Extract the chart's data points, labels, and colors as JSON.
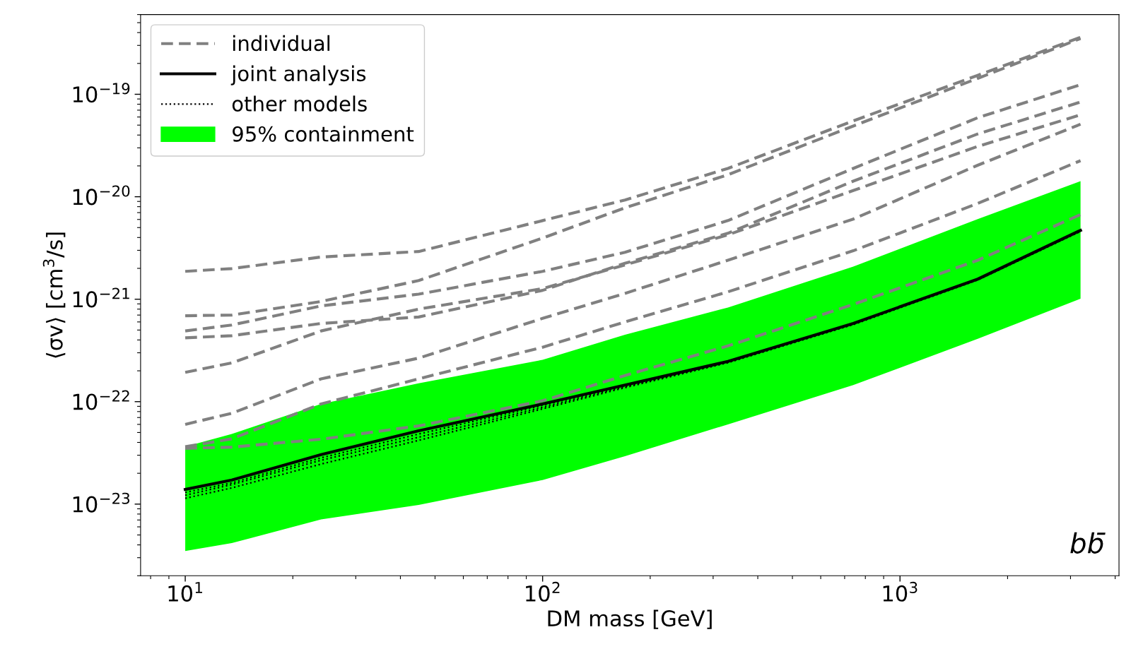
{
  "chart_data": {
    "type": "line",
    "log": "xy",
    "grid": false,
    "legend": "top left",
    "marker": "none",
    "xlabel": "DM mass [GeV]",
    "ylabel": "⟨σv⟩ [cm$^{3}$/s]",
    "xlim": [
      7.5,
      4100
    ],
    "ylim": [
      2e-24,
      6e-19
    ],
    "xticks": [
      {
        "value": 10,
        "label": "10$^{1}$"
      },
      {
        "value": 100,
        "label": "10$^{2}$"
      },
      {
        "value": 1000,
        "label": "10$^{3}$"
      }
    ],
    "yticks": [
      {
        "value": 1e-23,
        "label": "10$^{−23}$"
      },
      {
        "value": 1e-22,
        "label": "10$^{−22}$"
      },
      {
        "value": 1e-21,
        "label": "10$^{−21}$"
      },
      {
        "value": 1e-20,
        "label": "10$^{−20}$"
      },
      {
        "value": 1e-19,
        "label": "10$^{−19}$"
      }
    ],
    "annotations": [
      "bb̄"
    ],
    "x": [
      10,
      13.5,
      24,
      45,
      100,
      170,
      330,
      740,
      1650,
      3200
    ],
    "series": [
      {
        "name": "individual",
        "type": "line",
        "line_style": "dashed",
        "color": "#808080",
        "values": [
          1.87e-21,
          1.99e-21,
          2.58e-21,
          2.92e-21,
          5.85e-21,
          9.3e-21,
          1.89e-20,
          5.5e-20,
          1.53e-19,
          3.6e-19
        ]
      },
      {
        "type": "line",
        "line_style": "dashed",
        "color": "#808080",
        "values": [
          6.9e-22,
          7e-22,
          9.5e-22,
          1.52e-21,
          3.95e-21,
          7.8e-21,
          1.64e-20,
          4.9e-20,
          1.43e-19,
          3.5e-19
        ]
      },
      {
        "type": "line",
        "line_style": "dashed",
        "color": "#808080",
        "values": [
          4.9e-22,
          5.6e-22,
          8.6e-22,
          1.12e-21,
          1.87e-21,
          2.87e-21,
          5.85e-21,
          1.89e-20,
          5.9e-20,
          1.24e-19
        ]
      },
      {
        "type": "line",
        "line_style": "dashed",
        "color": "#808080",
        "values": [
          4.2e-22,
          4.4e-22,
          5.8e-22,
          6.7e-22,
          1.22e-21,
          2.24e-21,
          4.4e-21,
          1.42e-20,
          4.1e-20,
          8.4e-20
        ]
      },
      {
        "type": "line",
        "line_style": "dashed",
        "color": "#808080",
        "values": [
          1.93e-22,
          2.39e-22,
          4.9e-22,
          8e-22,
          1.27e-21,
          2.16e-21,
          4.25e-21,
          1.15e-20,
          3.1e-20,
          6.3e-20
        ]
      },
      {
        "type": "line",
        "line_style": "dashed",
        "color": "#808080",
        "values": [
          6e-23,
          7.7e-23,
          1.67e-22,
          2.66e-22,
          6.5e-22,
          1.14e-21,
          2.4e-21,
          6.05e-21,
          2.03e-20,
          5.1e-20
        ]
      },
      {
        "type": "line",
        "line_style": "dashed",
        "color": "#808080",
        "values": [
          3.63e-23,
          4.34e-23,
          9.5e-23,
          1.67e-22,
          3.4e-22,
          6e-22,
          1.18e-21,
          2.97e-21,
          8.6e-21,
          2.25e-20
        ]
      },
      {
        "type": "line",
        "line_style": "dashed",
        "color": "#808080",
        "values": [
          3.5e-23,
          3.6e-23,
          4.3e-23,
          5.8e-23,
          1.02e-22,
          1.8e-22,
          3.5e-22,
          8.9e-22,
          2.4e-21,
          6.7e-21
        ]
      },
      {
        "name": "joint analysis",
        "type": "line",
        "line_style": "solid",
        "color": "#000000",
        "values": [
          1.39e-23,
          1.72e-23,
          3.04e-23,
          5.2e-23,
          9.5e-23,
          1.45e-22,
          2.47e-22,
          5.8e-22,
          1.57e-21,
          4.7e-21
        ]
      },
      {
        "name": "other models",
        "type": "line",
        "line_style": "dotted",
        "color": "#000000",
        "values": [
          1.3e-23,
          1.61e-23,
          2.83e-23,
          4.83e-23,
          9.2e-23,
          1.43e-22,
          2.45e-22,
          5.75e-22,
          1.56e-21,
          4.65e-21
        ]
      },
      {
        "type": "line",
        "line_style": "dotted",
        "color": "#000000",
        "values": [
          1.22e-23,
          1.55e-23,
          2.68e-23,
          4.5e-23,
          8.8e-23,
          1.4e-22,
          2.42e-22,
          5.7e-22,
          1.55e-21,
          4.6e-21
        ]
      },
      {
        "type": "line",
        "line_style": "dotted",
        "color": "#000000",
        "values": [
          1.14e-23,
          1.44e-23,
          2.46e-23,
          4.19e-23,
          8.5e-23,
          1.37e-22,
          2.4e-22,
          5.65e-22,
          1.54e-21,
          4.6e-21
        ]
      },
      {
        "name": "95% containment",
        "type": "area",
        "color": "#00ff00",
        "values": [
          null,
          null,
          null,
          null,
          null,
          null,
          null,
          null,
          null,
          null
        ],
        "lower": [
          3.48e-24,
          4.16e-24,
          7.1e-24,
          9.8e-24,
          1.72e-23,
          2.94e-23,
          6e-23,
          1.45e-22,
          4.1e-22,
          1.01e-21
        ],
        "upper": [
          3.63e-23,
          4.83e-23,
          9.5e-23,
          1.51e-22,
          2.56e-22,
          4.5e-22,
          8.3e-22,
          2.08e-21,
          6.05e-21,
          1.42e-20
        ]
      }
    ]
  }
}
